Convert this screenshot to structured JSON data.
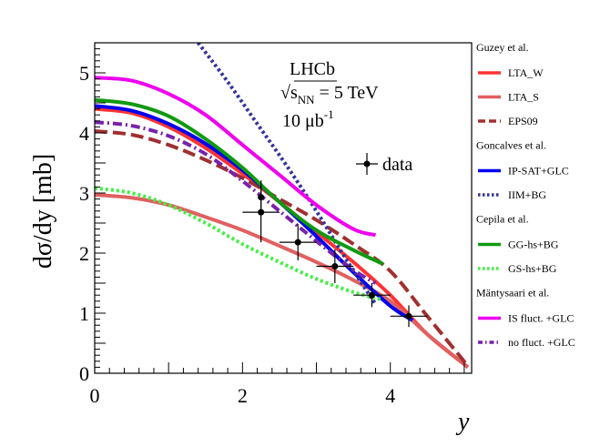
{
  "chart_data": {
    "type": "line",
    "xlabel": "y",
    "ylabel": "dσ/dy [mb]",
    "xlim": [
      0,
      5.1
    ],
    "ylim": [
      0,
      5.5
    ],
    "x_ticks": [
      0,
      2,
      4
    ],
    "y_ticks": [
      0,
      1,
      2,
      3,
      4,
      5
    ],
    "annotations": {
      "experiment": "LHCb",
      "energy_sym": "√s",
      "energy_sub": "NN",
      "energy_val": " = 5 TeV",
      "lumi_val": "10 μb",
      "lumi_sup": "-1",
      "data_label": "data"
    },
    "legend_groups": [
      {
        "header": "Guzey et al.",
        "entries": [
          "LTA_W",
          "LTA_S",
          "EPS09"
        ]
      },
      {
        "header": "Goncalves et al.",
        "entries": [
          "IP-SAT+GLC",
          "IIM+BG"
        ]
      },
      {
        "header": "Cepila et al.",
        "entries": [
          "GG-hs+BG",
          "GS-hs+BG"
        ]
      },
      {
        "header": "Mäntysaari et al.",
        "entries": [
          "IS fluct. +GLC",
          "no fluct. +GLC"
        ]
      }
    ],
    "series": [
      {
        "name": "LTA_W",
        "color": "#ff3333",
        "dash": "solid",
        "x": [
          0,
          0.5,
          1,
          1.5,
          2,
          2.5,
          3,
          3.5,
          4,
          4.5,
          5.05
        ],
        "y": [
          4.4,
          4.33,
          4.1,
          3.75,
          3.32,
          2.85,
          2.35,
          1.85,
          1.3,
          0.65,
          0.1
        ]
      },
      {
        "name": "LTA_S",
        "color": "#e06060",
        "dash": "solid",
        "x": [
          0,
          0.5,
          1,
          1.5,
          2,
          2.5,
          3,
          3.5,
          4,
          4.5,
          5.05
        ],
        "y": [
          2.97,
          2.92,
          2.8,
          2.6,
          2.38,
          2.12,
          1.85,
          1.55,
          1.2,
          0.65,
          0.1
        ]
      },
      {
        "name": "EPS09",
        "color": "#a03030",
        "dash": "long",
        "x": [
          0,
          0.5,
          1,
          1.5,
          2,
          2.5,
          3,
          3.5,
          4,
          4.5,
          5.05
        ],
        "y": [
          4.03,
          3.97,
          3.8,
          3.55,
          3.25,
          2.9,
          2.55,
          2.15,
          1.7,
          0.95,
          0.12
        ]
      },
      {
        "name": "IP-SAT+GLC",
        "color": "#0000ee",
        "dash": "solid",
        "x": [
          0,
          0.5,
          1,
          1.5,
          2,
          2.5,
          3,
          3.5,
          4,
          4.3
        ],
        "y": [
          4.45,
          4.37,
          4.15,
          3.82,
          3.38,
          2.85,
          2.28,
          1.68,
          1.12,
          0.88
        ]
      },
      {
        "name": "IIM+BG",
        "color": "#333399",
        "dash": "dot",
        "x": [
          1.4,
          1.8,
          2.2,
          2.6,
          3.0,
          3.4,
          3.8
        ],
        "y": [
          5.5,
          4.85,
          4.15,
          3.45,
          2.7,
          1.9,
          1.15
        ]
      },
      {
        "name": "GG-hs+BG",
        "color": "#119911",
        "dash": "solid",
        "x": [
          0,
          0.5,
          1,
          1.5,
          2,
          2.5,
          3,
          3.5,
          3.9
        ],
        "y": [
          4.55,
          4.48,
          4.28,
          3.9,
          3.42,
          2.85,
          2.38,
          2.05,
          1.82
        ]
      },
      {
        "name": "GS-hs+BG",
        "color": "#44ee44",
        "dash": "dot",
        "x": [
          0,
          0.5,
          1,
          1.5,
          2,
          2.5,
          3,
          3.5,
          3.9
        ],
        "y": [
          3.08,
          3.0,
          2.8,
          2.5,
          2.15,
          1.85,
          1.57,
          1.35,
          1.22
        ]
      },
      {
        "name": "IS fluct. +GLC",
        "color": "#ee00ee",
        "dash": "solid",
        "x": [
          0,
          0.5,
          1,
          1.5,
          2,
          2.5,
          3,
          3.5,
          3.8
        ],
        "y": [
          4.92,
          4.87,
          4.65,
          4.3,
          3.8,
          3.3,
          2.8,
          2.4,
          2.3
        ]
      },
      {
        "name": "no fluct. +GLC",
        "color": "#7722aa",
        "dash": "dashdot",
        "x": [
          0,
          0.5,
          1,
          1.5,
          2,
          2.5,
          3,
          3.5,
          3.8
        ],
        "y": [
          4.18,
          4.12,
          3.95,
          3.65,
          3.2,
          2.7,
          2.2,
          1.72,
          1.5
        ]
      }
    ],
    "data_points": [
      {
        "x": 2.25,
        "y": 2.68,
        "xerr": 0.25,
        "yerr": 0.5
      },
      {
        "x": 2.25,
        "y": 2.93,
        "xerr": 0.0,
        "yerr": 0.28
      },
      {
        "x": 2.75,
        "y": 2.18,
        "xerr": 0.25,
        "yerr": 0.3
      },
      {
        "x": 3.25,
        "y": 1.78,
        "xerr": 0.25,
        "yerr": 0.28
      },
      {
        "x": 3.75,
        "y": 1.3,
        "xerr": 0.25,
        "yerr": 0.2
      },
      {
        "x": 4.25,
        "y": 0.95,
        "xerr": 0.25,
        "yerr": 0.18
      }
    ]
  }
}
